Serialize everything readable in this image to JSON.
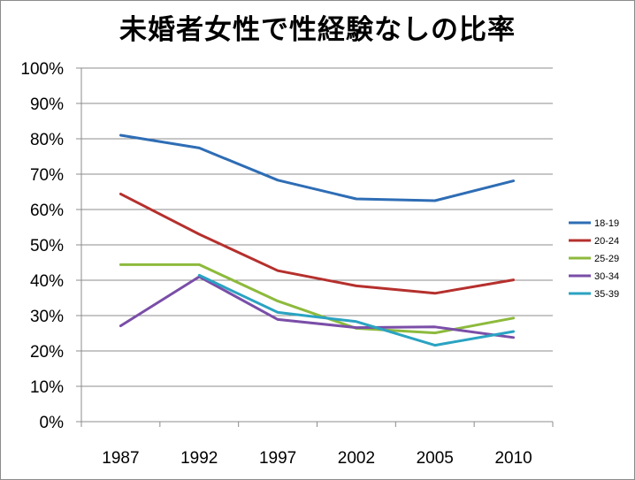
{
  "chart_data": {
    "type": "line",
    "title": "未婚者女性で性経験なしの比率",
    "categories": [
      "1987",
      "1992",
      "1997",
      "2002",
      "2005",
      "2010"
    ],
    "y_ticks": [
      "0%",
      "10%",
      "20%",
      "30%",
      "40%",
      "50%",
      "60%",
      "70%",
      "80%",
      "90%",
      "100%"
    ],
    "ylim": [
      0,
      100
    ],
    "grid": "horizontal",
    "legend_position": "right",
    "series": [
      {
        "name": "18-19",
        "color": "#2e6db5",
        "values": [
          81.0,
          77.4,
          68.3,
          63.0,
          62.5,
          68.1
        ]
      },
      {
        "name": "20-24",
        "color": "#b5302d",
        "values": [
          64.4,
          53.0,
          42.7,
          38.4,
          36.3,
          40.1
        ]
      },
      {
        "name": "25-29",
        "color": "#8dba3c",
        "values": [
          44.4,
          44.4,
          34.1,
          26.4,
          25.1,
          29.3
        ]
      },
      {
        "name": "30-34",
        "color": "#7a4ea8",
        "values": [
          27.1,
          41.0,
          28.9,
          26.6,
          26.8,
          23.8
        ]
      },
      {
        "name": "35-39",
        "color": "#2aa3c2",
        "values": [
          null,
          41.4,
          30.9,
          28.3,
          21.6,
          25.5
        ]
      }
    ]
  }
}
